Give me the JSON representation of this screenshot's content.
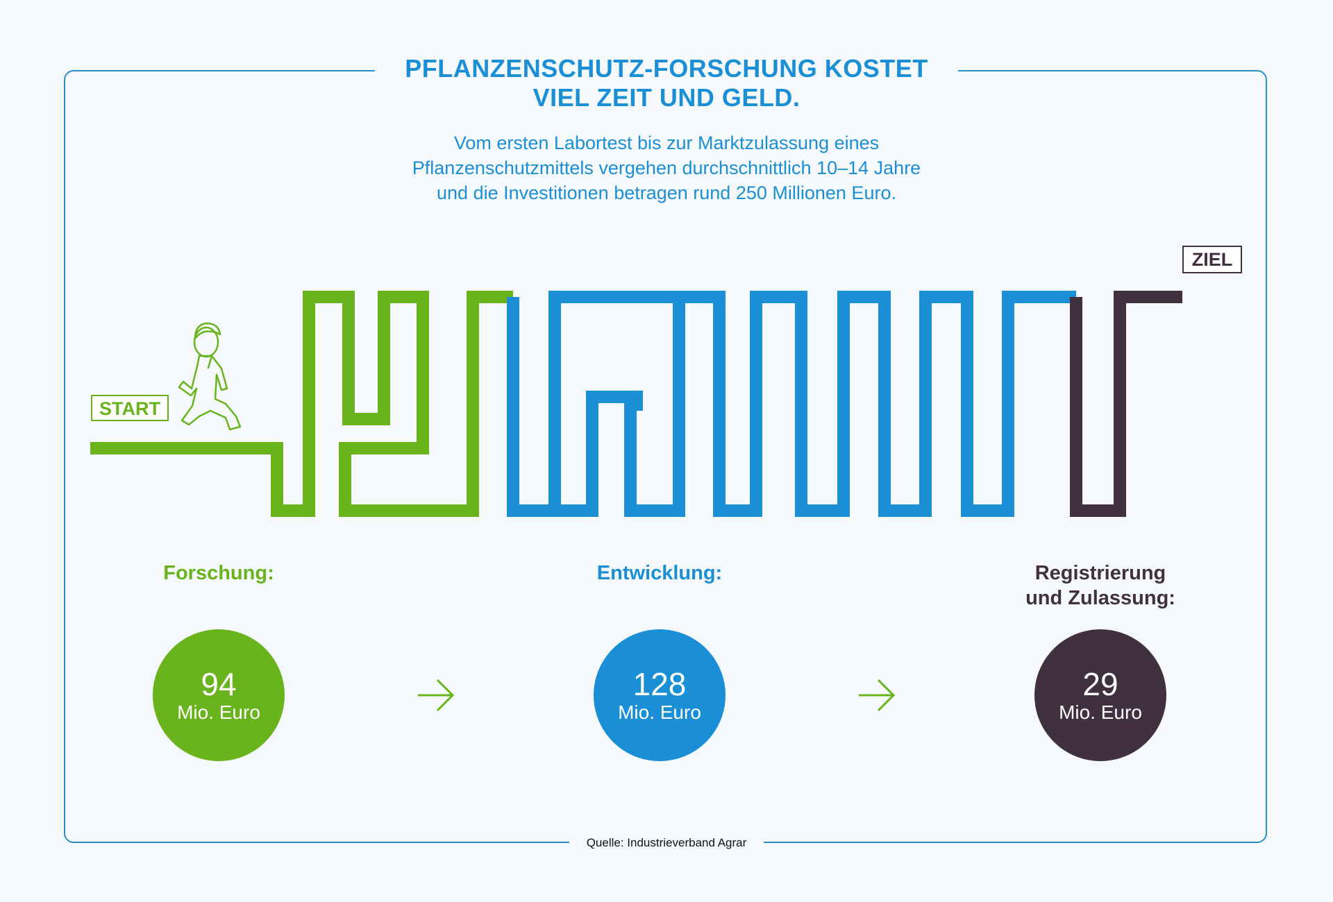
{
  "title": {
    "line1": "PFLANZENSCHUTZ-FORSCHUNG KOSTET",
    "line2": "VIEL ZEIT UND GELD."
  },
  "subtitle": {
    "line1": "Vom ersten Labortest bis zur Marktzulassung eines",
    "line2": "Pflanzenschutzmittels vergehen durchschnittlich 10–14 Jahre",
    "line3": "und die Investitionen betragen rund 250 Millionen Euro."
  },
  "maze": {
    "start_label": "START",
    "goal_label": "ZIEL",
    "icon": "running-person-icon"
  },
  "stages": [
    {
      "label_line1": "Forschung:",
      "label_line2": "",
      "value": "94",
      "unit": "Mio. Euro",
      "color": "#69b31c"
    },
    {
      "label_line1": "Entwicklung:",
      "label_line2": "",
      "value": "128",
      "unit": "Mio. Euro",
      "color": "#1a8fd6"
    },
    {
      "label_line1": "Registrierung",
      "label_line2": "und Zulassung:",
      "value": "29",
      "unit": "Mio. Euro",
      "color": "#403040"
    }
  ],
  "colors": {
    "research": "#69b31c",
    "development": "#1a8fd6",
    "registration": "#403040",
    "frame": "#2a8fc8"
  },
  "source": "Quelle: Industrieverband Agrar"
}
